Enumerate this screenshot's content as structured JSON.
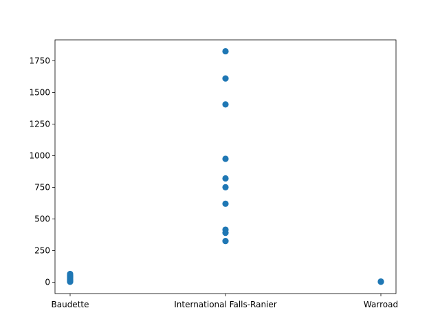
{
  "chart_data": {
    "type": "scatter",
    "title": "",
    "xlabel": "",
    "ylabel": "",
    "categories": [
      "Baudette",
      "International Falls-Ranier",
      "Warroad"
    ],
    "ylim": [
      -90,
      1915
    ],
    "yticks": [
      0,
      250,
      500,
      750,
      1000,
      1250,
      1500,
      1750
    ],
    "ytick_labels": [
      "0",
      "250",
      "500",
      "750",
      "1000",
      "1250",
      "1500",
      "1750"
    ],
    "grid": false,
    "legend": "none",
    "color": "#1f77b4",
    "points": [
      {
        "x": "Baudette",
        "y": 65
      },
      {
        "x": "Baudette",
        "y": 55
      },
      {
        "x": "Baudette",
        "y": 45
      },
      {
        "x": "Baudette",
        "y": 38
      },
      {
        "x": "Baudette",
        "y": 30
      },
      {
        "x": "Baudette",
        "y": 22
      },
      {
        "x": "Baudette",
        "y": 15
      },
      {
        "x": "Baudette",
        "y": 8
      },
      {
        "x": "Baudette",
        "y": 3
      },
      {
        "x": "International Falls-Ranier",
        "y": 1825
      },
      {
        "x": "International Falls-Ranier",
        "y": 1610
      },
      {
        "x": "International Falls-Ranier",
        "y": 1405
      },
      {
        "x": "International Falls-Ranier",
        "y": 975
      },
      {
        "x": "International Falls-Ranier",
        "y": 820
      },
      {
        "x": "International Falls-Ranier",
        "y": 750
      },
      {
        "x": "International Falls-Ranier",
        "y": 620
      },
      {
        "x": "International Falls-Ranier",
        "y": 415
      },
      {
        "x": "International Falls-Ranier",
        "y": 390
      },
      {
        "x": "International Falls-Ranier",
        "y": 325
      },
      {
        "x": "Warroad",
        "y": 5
      },
      {
        "x": "Warroad",
        "y": 3
      }
    ]
  }
}
